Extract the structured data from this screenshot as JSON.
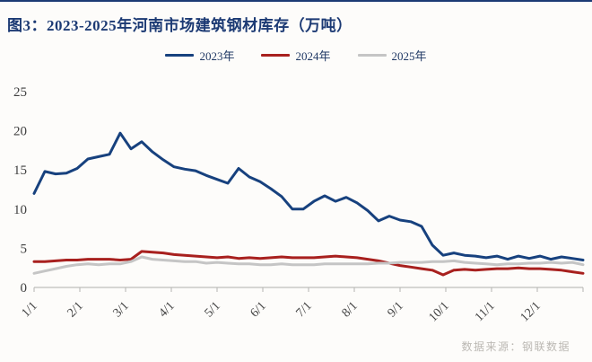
{
  "title": "图3：2023-2025年河南市场建筑钢材库存（万吨）",
  "source": "数据来源：钢联数据",
  "legend": {
    "items": [
      {
        "label": "2023年"
      },
      {
        "label": "2024年"
      },
      {
        "label": "2025年"
      }
    ]
  },
  "colors": {
    "title": "#1c3a74",
    "series_2023": "#17417e",
    "series_2024": "#a8201e",
    "series_2025": "#c5c5c5",
    "axis": "#c9c9c6",
    "tick_text": "#404040",
    "source_text": "#bbb8b3"
  },
  "chart_data": {
    "type": "line",
    "title": "图3：2023-2025年河南市场建筑钢材库存（万吨）",
    "xlabel": "",
    "ylabel": "",
    "x_unit": "weekly dates (month/day)",
    "x_tick_labels": [
      "1/1",
      "2/1",
      "3/1",
      "4/1",
      "5/1",
      "6/1",
      "7/1",
      "8/1",
      "9/1",
      "10/1",
      "11/1",
      "12/1"
    ],
    "y_ticks": [
      0,
      5,
      10,
      15,
      20,
      25
    ],
    "ylim": [
      0,
      25
    ],
    "grid": false,
    "legend_position": "top-center",
    "series": [
      {
        "name": "2023年",
        "color": "#17417e",
        "values": [
          12.0,
          14.8,
          14.5,
          14.6,
          15.2,
          16.4,
          16.7,
          17.0,
          19.7,
          17.7,
          18.6,
          17.3,
          16.3,
          15.4,
          15.1,
          14.9,
          14.3,
          13.8,
          13.3,
          15.2,
          14.1,
          13.5,
          12.6,
          11.6,
          10.0,
          10.0,
          11.0,
          11.7,
          11.0,
          11.5,
          10.8,
          9.8,
          8.5,
          9.1,
          8.6,
          8.4,
          7.8,
          5.4,
          4.1,
          4.4,
          4.1,
          4.0,
          3.8,
          4.0,
          3.6,
          4.0,
          3.7,
          4.0,
          3.6,
          3.9,
          3.7,
          3.5
        ]
      },
      {
        "name": "2024年",
        "color": "#a8201e",
        "values": [
          3.3,
          3.3,
          3.4,
          3.5,
          3.5,
          3.6,
          3.6,
          3.6,
          3.5,
          3.6,
          4.6,
          4.5,
          4.4,
          4.2,
          4.1,
          4.0,
          3.9,
          3.8,
          3.9,
          3.7,
          3.8,
          3.7,
          3.8,
          3.9,
          3.8,
          3.8,
          3.8,
          3.9,
          4.0,
          3.9,
          3.8,
          3.6,
          3.4,
          3.1,
          2.8,
          2.6,
          2.4,
          2.2,
          1.6,
          2.2,
          2.3,
          2.2,
          2.3,
          2.4,
          2.4,
          2.5,
          2.4,
          2.4,
          2.3,
          2.2,
          2.0,
          1.8
        ]
      },
      {
        "name": "2025年",
        "color": "#c5c5c5",
        "values": [
          1.8,
          2.1,
          2.4,
          2.7,
          2.9,
          3.0,
          2.9,
          3.0,
          3.0,
          3.3,
          3.9,
          3.6,
          3.5,
          3.4,
          3.3,
          3.3,
          3.1,
          3.2,
          3.1,
          3.0,
          3.0,
          2.9,
          2.9,
          3.0,
          2.9,
          2.9,
          2.9,
          3.0,
          3.0,
          3.0,
          3.0,
          3.0,
          3.1,
          3.1,
          3.2,
          3.2,
          3.2,
          3.3,
          3.3,
          3.4,
          3.2,
          3.1,
          3.0,
          2.9,
          3.0,
          3.0,
          3.1,
          3.1,
          3.2,
          3.1,
          3.2,
          2.9
        ]
      }
    ]
  }
}
